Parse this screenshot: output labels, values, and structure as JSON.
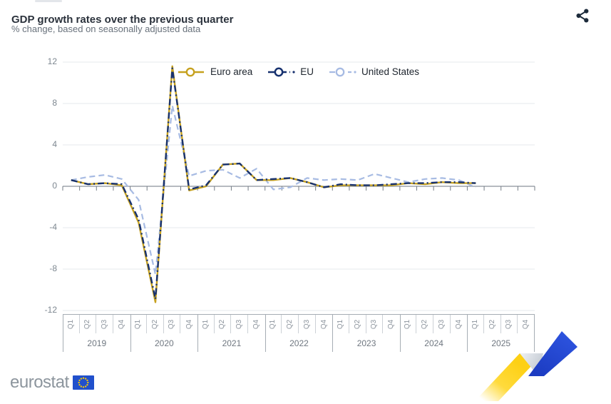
{
  "header": {
    "title": "GDP growth rates over the previous quarter",
    "subtitle": "% change, based on seasonally adjusted data"
  },
  "toolbar": {
    "share_icon": "share-nodes"
  },
  "chart_data": {
    "type": "line",
    "title": "GDP growth rates over the previous quarter",
    "subtitle": "% change, based on seasonally adjusted data",
    "ylim": [
      -12,
      12
    ],
    "ytick_step": 4,
    "grid": "horizontal",
    "legend_position": "top-center",
    "years": [
      "2019",
      "2020",
      "2021",
      "2022",
      "2023",
      "2024",
      "2025"
    ],
    "quarter_labels": [
      "Q1",
      "Q2",
      "Q3",
      "Q4"
    ],
    "x": [
      "2019-Q1",
      "2019-Q2",
      "2019-Q3",
      "2019-Q4",
      "2020-Q1",
      "2020-Q2",
      "2020-Q3",
      "2020-Q4",
      "2021-Q1",
      "2021-Q2",
      "2021-Q3",
      "2021-Q4",
      "2022-Q1",
      "2022-Q2",
      "2022-Q3",
      "2022-Q4",
      "2023-Q1",
      "2023-Q2",
      "2023-Q3",
      "2023-Q4",
      "2024-Q1",
      "2024-Q2",
      "2024-Q3",
      "2024-Q4",
      "2025-Q1",
      "2025-Q2",
      "2025-Q3",
      "2025-Q4"
    ],
    "series": [
      {
        "name": "Euro area",
        "color": "#c6a11f",
        "style": "solid",
        "values": [
          0.6,
          0.2,
          0.3,
          0.1,
          -3.5,
          -11.2,
          11.6,
          -0.4,
          0.0,
          2.1,
          2.2,
          0.6,
          0.6,
          0.8,
          0.4,
          -0.1,
          0.1,
          0.1,
          0.1,
          0.1,
          0.3,
          0.2,
          0.4,
          0.3,
          0.3,
          null,
          null,
          null
        ]
      },
      {
        "name": "EU",
        "color": "#17316f",
        "style": "dash-dot",
        "values": [
          0.6,
          0.2,
          0.3,
          0.2,
          -3.2,
          -10.9,
          11.4,
          -0.3,
          0.1,
          2.1,
          2.2,
          0.6,
          0.7,
          0.8,
          0.4,
          -0.1,
          0.2,
          0.1,
          0.1,
          0.2,
          0.3,
          0.3,
          0.4,
          0.4,
          0.3,
          null,
          null,
          null
        ]
      },
      {
        "name": "United States",
        "color": "#a7bbe3",
        "style": "dashed",
        "values": [
          0.6,
          0.9,
          1.1,
          0.7,
          -1.3,
          -8.5,
          7.8,
          1.0,
          1.5,
          1.6,
          0.8,
          1.7,
          -0.3,
          -0.1,
          0.8,
          0.6,
          0.7,
          0.6,
          1.2,
          0.8,
          0.4,
          0.7,
          0.8,
          0.6,
          -0.1,
          null,
          null,
          null
        ]
      }
    ]
  },
  "footer": {
    "logo_text": "eurostat"
  }
}
